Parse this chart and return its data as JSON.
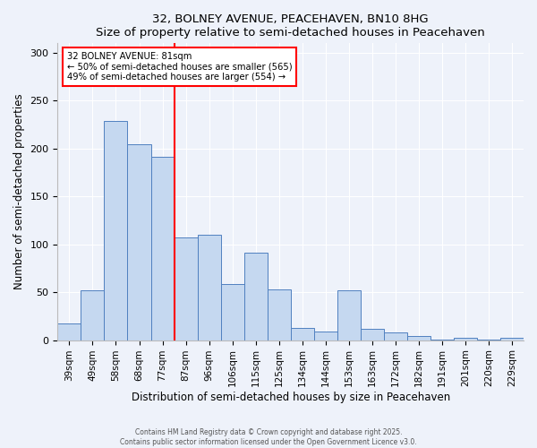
{
  "title": "32, BOLNEY AVENUE, PEACEHAVEN, BN10 8HG",
  "subtitle": "Size of property relative to semi-detached houses in Peacehaven",
  "xlabel": "Distribution of semi-detached houses by size in Peacehaven",
  "ylabel": "Number of semi-detached properties",
  "categories": [
    "39sqm",
    "49sqm",
    "58sqm",
    "68sqm",
    "77sqm",
    "87sqm",
    "96sqm",
    "106sqm",
    "115sqm",
    "125sqm",
    "134sqm",
    "144sqm",
    "153sqm",
    "163sqm",
    "172sqm",
    "182sqm",
    "191sqm",
    "201sqm",
    "220sqm",
    "229sqm"
  ],
  "values": [
    17,
    52,
    229,
    205,
    191,
    107,
    110,
    59,
    91,
    53,
    13,
    9,
    52,
    12,
    8,
    4,
    1,
    2,
    1,
    2
  ],
  "bar_color": "#c5d8f0",
  "bar_edge_color": "#5080c0",
  "vline_x": 4.5,
  "vline_color": "red",
  "annotation_title": "32 BOLNEY AVENUE: 81sqm",
  "annotation_line1": "← 50% of semi-detached houses are smaller (565)",
  "annotation_line2": "49% of semi-detached houses are larger (554) →",
  "ylim": [
    0,
    310
  ],
  "yticks": [
    0,
    50,
    100,
    150,
    200,
    250,
    300
  ],
  "footnote1": "Contains HM Land Registry data © Crown copyright and database right 2025.",
  "footnote2": "Contains public sector information licensed under the Open Government Licence v3.0.",
  "bg_color": "#eef2fa"
}
